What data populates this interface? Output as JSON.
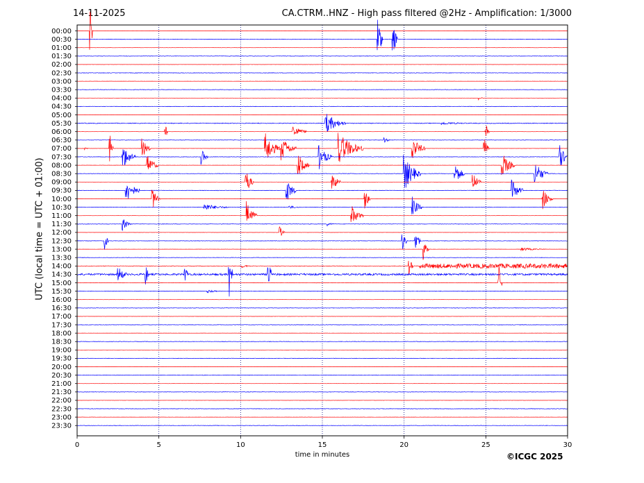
{
  "header": {
    "date": "14-11-2025",
    "title": "CA.CTRM..HNZ - High pass filtered @2Hz - Amplification: 1/3000"
  },
  "footer": {
    "copyright": "©ICGC 2025"
  },
  "colors": {
    "even_rows": "#ff0000",
    "odd_rows": "#0000ff",
    "grid": "#000080"
  },
  "chart_data": {
    "type": "line",
    "xlabel": "time in minutes",
    "ylabel": "UTC (local time = UTC + 01:00)",
    "xlim": [
      0,
      30
    ],
    "x_ticks": [
      0,
      5,
      10,
      15,
      20,
      25,
      30
    ],
    "grid": "vertical dotted lines",
    "row_labels": [
      "00:00",
      "00:30",
      "01:00",
      "01:30",
      "02:00",
      "02:30",
      "03:00",
      "03:30",
      "04:00",
      "04:30",
      "05:00",
      "05:30",
      "06:00",
      "06:30",
      "07:00",
      "07:30",
      "08:00",
      "08:30",
      "09:00",
      "09:30",
      "10:00",
      "10:30",
      "11:00",
      "11:30",
      "12:00",
      "12:30",
      "13:00",
      "13:30",
      "14:00",
      "14:30",
      "15:00",
      "15:30",
      "16:00",
      "16:30",
      "17:00",
      "17:30",
      "18:00",
      "18:30",
      "19:00",
      "19:30",
      "20:00",
      "20:30",
      "21:00",
      "21:30",
      "22:00",
      "22:30",
      "23:00",
      "23:30"
    ],
    "noise_level": [
      0.12,
      0.3,
      0.12,
      0.3,
      0.12,
      0.3,
      0.12,
      0.3,
      0.12,
      0.3,
      0.12,
      0.5,
      0.12,
      0.3,
      0.12,
      0.3,
      0.12,
      0.3,
      0.12,
      0.3,
      0.12,
      0.3,
      0.12,
      0.3,
      0.12,
      0.3,
      0.12,
      0.3,
      0.3,
      1.3,
      0.25,
      0.3,
      0.12,
      0.3,
      0.12,
      0.3,
      0.12,
      0.3,
      0.12,
      0.3,
      0.12,
      0.3,
      0.12,
      0.3,
      0.12,
      0.3,
      0.12,
      0.3
    ],
    "events": [
      {
        "row": 0,
        "minute": 0.8,
        "amplitude": 7,
        "duration": 0.15
      },
      {
        "row": 1,
        "minute": 18.4,
        "amplitude": 5.5,
        "duration": 0.3
      },
      {
        "row": 1,
        "minute": 19.3,
        "amplitude": 5,
        "duration": 0.3
      },
      {
        "row": 8,
        "minute": 24.6,
        "amplitude": 0.4,
        "duration": 0.3
      },
      {
        "row": 11,
        "minute": 15.2,
        "amplitude": 2.5,
        "duration": 1.2
      },
      {
        "row": 11,
        "minute": 22.3,
        "amplitude": 0.3,
        "duration": 1.5
      },
      {
        "row": 12,
        "minute": 5.4,
        "amplitude": 2.0,
        "duration": 0.15
      },
      {
        "row": 12,
        "minute": 13.2,
        "amplitude": 1.8,
        "duration": 0.8
      },
      {
        "row": 12,
        "minute": 25.0,
        "amplitude": 2.5,
        "duration": 0.2
      },
      {
        "row": 13,
        "minute": 18.8,
        "amplitude": 0.8,
        "duration": 0.3
      },
      {
        "row": 14,
        "minute": 0.5,
        "amplitude": 0.3,
        "duration": 0.2
      },
      {
        "row": 14,
        "minute": 2.0,
        "amplitude": 3.5,
        "duration": 0.2
      },
      {
        "row": 14,
        "minute": 4.0,
        "amplitude": 2.5,
        "duration": 0.5
      },
      {
        "row": 14,
        "minute": 11.5,
        "amplitude": 4.0,
        "duration": 0.9
      },
      {
        "row": 14,
        "minute": 12.5,
        "amplitude": 3.0,
        "duration": 0.9
      },
      {
        "row": 14,
        "minute": 16.0,
        "amplitude": 4.0,
        "duration": 1.5
      },
      {
        "row": 14,
        "minute": 20.5,
        "amplitude": 3.0,
        "duration": 0.8
      },
      {
        "row": 14,
        "minute": 24.9,
        "amplitude": 3.0,
        "duration": 0.3
      },
      {
        "row": 15,
        "minute": 2.8,
        "amplitude": 3.0,
        "duration": 0.8
      },
      {
        "row": 15,
        "minute": 7.6,
        "amplitude": 2.0,
        "duration": 0.4
      },
      {
        "row": 15,
        "minute": 14.8,
        "amplitude": 3.0,
        "duration": 0.8
      },
      {
        "row": 15,
        "minute": 29.5,
        "amplitude": 3.0,
        "duration": 0.6
      },
      {
        "row": 16,
        "minute": 4.3,
        "amplitude": 2.5,
        "duration": 0.7
      },
      {
        "row": 16,
        "minute": 13.5,
        "amplitude": 3.0,
        "duration": 0.7
      },
      {
        "row": 16,
        "minute": 26.0,
        "amplitude": 3.0,
        "duration": 0.8
      },
      {
        "row": 17,
        "minute": 20.0,
        "amplitude": 4.5,
        "duration": 1.0
      },
      {
        "row": 17,
        "minute": 23.1,
        "amplitude": 3.0,
        "duration": 0.6
      },
      {
        "row": 17,
        "minute": 28.0,
        "amplitude": 3.0,
        "duration": 0.8
      },
      {
        "row": 18,
        "minute": 10.3,
        "amplitude": 3.5,
        "duration": 0.5
      },
      {
        "row": 18,
        "minute": 15.6,
        "amplitude": 2.5,
        "duration": 0.5
      },
      {
        "row": 18,
        "minute": 24.2,
        "amplitude": 2.5,
        "duration": 0.5
      },
      {
        "row": 19,
        "minute": 3.0,
        "amplitude": 3.0,
        "duration": 0.8
      },
      {
        "row": 19,
        "minute": 12.8,
        "amplitude": 3.0,
        "duration": 0.6
      },
      {
        "row": 19,
        "minute": 26.6,
        "amplitude": 2.5,
        "duration": 0.7
      },
      {
        "row": 20,
        "minute": 4.6,
        "amplitude": 3.0,
        "duration": 0.5
      },
      {
        "row": 20,
        "minute": 17.6,
        "amplitude": 3.0,
        "duration": 0.3
      },
      {
        "row": 20,
        "minute": 28.5,
        "amplitude": 2.5,
        "duration": 0.6
      },
      {
        "row": 21,
        "minute": 7.8,
        "amplitude": 0.8,
        "duration": 1.5
      },
      {
        "row": 21,
        "minute": 13.0,
        "amplitude": 0.4,
        "duration": 0.6
      },
      {
        "row": 21,
        "minute": 20.5,
        "amplitude": 2.5,
        "duration": 0.6
      },
      {
        "row": 22,
        "minute": 10.4,
        "amplitude": 3.5,
        "duration": 0.6
      },
      {
        "row": 22,
        "minute": 16.8,
        "amplitude": 2.5,
        "duration": 0.7
      },
      {
        "row": 23,
        "minute": 2.8,
        "amplitude": 1.5,
        "duration": 0.5
      },
      {
        "row": 23,
        "minute": 15.3,
        "amplitude": 0.4,
        "duration": 0.4
      },
      {
        "row": 24,
        "minute": 12.4,
        "amplitude": 1.5,
        "duration": 0.3
      },
      {
        "row": 25,
        "minute": 1.7,
        "amplitude": 2.5,
        "duration": 0.2
      },
      {
        "row": 25,
        "minute": 19.9,
        "amplitude": 3.0,
        "duration": 0.3
      },
      {
        "row": 25,
        "minute": 20.7,
        "amplitude": 3.5,
        "duration": 0.3
      },
      {
        "row": 26,
        "minute": 21.2,
        "amplitude": 3.0,
        "duration": 0.3
      },
      {
        "row": 26,
        "minute": 27.2,
        "amplitude": 0.4,
        "duration": 1.5
      },
      {
        "row": 28,
        "minute": 20.3,
        "amplitude": 2.0,
        "duration": 0.3
      },
      {
        "row": 28,
        "minute": 21.0,
        "amplitude": 0.5,
        "duration": 9.0
      },
      {
        "row": 28,
        "minute": 10.1,
        "amplitude": 0.4,
        "duration": 0.5
      },
      {
        "row": 29,
        "minute": 2.5,
        "amplitude": 2.0,
        "duration": 0.5
      },
      {
        "row": 29,
        "minute": 4.2,
        "amplitude": 2.5,
        "duration": 0.2
      },
      {
        "row": 29,
        "minute": 6.6,
        "amplitude": 2.5,
        "duration": 0.2
      },
      {
        "row": 29,
        "minute": 9.3,
        "amplitude": 6.5,
        "duration": 0.2
      },
      {
        "row": 29,
        "minute": 11.7,
        "amplitude": 4.0,
        "duration": 0.2
      },
      {
        "row": 30,
        "minute": 25.8,
        "amplitude": 4.5,
        "duration": 0.2
      },
      {
        "row": 31,
        "minute": 8.0,
        "amplitude": 0.4,
        "duration": 0.6
      }
    ]
  }
}
